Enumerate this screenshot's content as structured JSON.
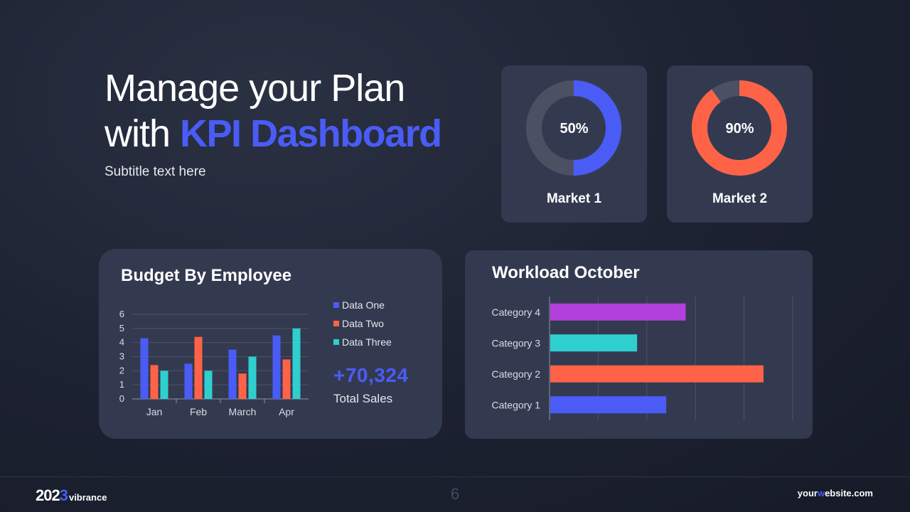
{
  "slide": {
    "title_line1": "Manage your Plan",
    "title_line2_prefix": "with ",
    "title_line2_accent": "KPI Dashboard",
    "subtitle": "Subtitle text here",
    "page_number": "6"
  },
  "markets": [
    {
      "label": "Market 1",
      "percent_text": "50%",
      "percent": 50,
      "color": "#4a5cf5",
      "track_color": "#4b5163"
    },
    {
      "label": "Market 2",
      "percent_text": "90%",
      "percent": 90,
      "color": "#ff6347",
      "track_color": "#4b5163"
    }
  ],
  "budget": {
    "title": "Budget By Employee",
    "total_value": "+70,324",
    "total_label": "Total Sales"
  },
  "workload": {
    "title": "Workload October"
  },
  "footer": {
    "brand_year_prefix": "202",
    "brand_year_accent": "3",
    "brand_name": "vibrance",
    "site_prefix": "your",
    "site_accent": "w",
    "site_suffix": "ebsite.com"
  },
  "colors": {
    "accent": "#4a5cf5",
    "series_one": "#4a5cf5",
    "series_two": "#ff6347",
    "series_three": "#30cfcf",
    "purple": "#b03fdc"
  },
  "chart_data": [
    {
      "type": "bar",
      "title": "Budget By Employee",
      "categories": [
        "Jan",
        "Feb",
        "March",
        "Apr"
      ],
      "series": [
        {
          "name": "Data One",
          "values": [
            4.3,
            2.5,
            3.5,
            4.5
          ],
          "color": "#4a5cf5"
        },
        {
          "name": "Data Two",
          "values": [
            2.4,
            4.4,
            1.8,
            2.8
          ],
          "color": "#ff6347"
        },
        {
          "name": "Data Three",
          "values": [
            2.0,
            2.0,
            3.0,
            5.0
          ],
          "color": "#30cfcf"
        }
      ],
      "yticks": [
        "0",
        "1",
        "2",
        "3",
        "4",
        "5",
        "6"
      ],
      "ylim": [
        0,
        6
      ],
      "grid": true,
      "legend": "right"
    },
    {
      "type": "bar",
      "orientation": "horizontal",
      "title": "Workload October",
      "categories": [
        "Category 4",
        "Category 3",
        "Category 2",
        "Category 1"
      ],
      "values": [
        2.8,
        1.8,
        4.4,
        2.4
      ],
      "colors": [
        "#b03fdc",
        "#30cfcf",
        "#ff6347",
        "#4a5cf5"
      ],
      "xlim": [
        0,
        5
      ],
      "grid": true
    }
  ]
}
